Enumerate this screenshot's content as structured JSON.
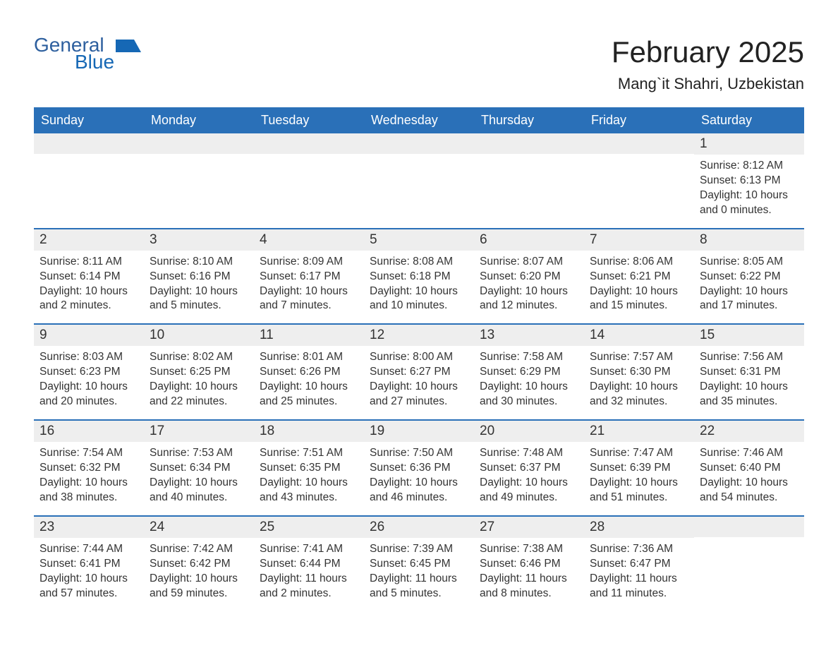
{
  "brand": {
    "line1": "General",
    "line2": "Blue",
    "color1": "#2d5f9e",
    "color2": "#1668b5"
  },
  "title": "February 2025",
  "location": "Mang`it Shahri, Uzbekistan",
  "colors": {
    "header_bg": "#2a70b8",
    "header_text": "#ffffff",
    "daynum_bg": "#eeeeee",
    "divider": "#2a70b8",
    "body_text": "#333333",
    "background": "#ffffff"
  },
  "typography": {
    "title_fontsize": 42,
    "location_fontsize": 22,
    "dow_fontsize": 18,
    "daynum_fontsize": 19,
    "body_fontsize": 15.5
  },
  "days_of_week": [
    "Sunday",
    "Monday",
    "Tuesday",
    "Wednesday",
    "Thursday",
    "Friday",
    "Saturday"
  ],
  "weeks": [
    [
      null,
      null,
      null,
      null,
      null,
      null,
      {
        "n": "1",
        "sunrise": "8:12 AM",
        "sunset": "6:13 PM",
        "daylight": "10 hours and 0 minutes."
      }
    ],
    [
      {
        "n": "2",
        "sunrise": "8:11 AM",
        "sunset": "6:14 PM",
        "daylight": "10 hours and 2 minutes."
      },
      {
        "n": "3",
        "sunrise": "8:10 AM",
        "sunset": "6:16 PM",
        "daylight": "10 hours and 5 minutes."
      },
      {
        "n": "4",
        "sunrise": "8:09 AM",
        "sunset": "6:17 PM",
        "daylight": "10 hours and 7 minutes."
      },
      {
        "n": "5",
        "sunrise": "8:08 AM",
        "sunset": "6:18 PM",
        "daylight": "10 hours and 10 minutes."
      },
      {
        "n": "6",
        "sunrise": "8:07 AM",
        "sunset": "6:20 PM",
        "daylight": "10 hours and 12 minutes."
      },
      {
        "n": "7",
        "sunrise": "8:06 AM",
        "sunset": "6:21 PM",
        "daylight": "10 hours and 15 minutes."
      },
      {
        "n": "8",
        "sunrise": "8:05 AM",
        "sunset": "6:22 PM",
        "daylight": "10 hours and 17 minutes."
      }
    ],
    [
      {
        "n": "9",
        "sunrise": "8:03 AM",
        "sunset": "6:23 PM",
        "daylight": "10 hours and 20 minutes."
      },
      {
        "n": "10",
        "sunrise": "8:02 AM",
        "sunset": "6:25 PM",
        "daylight": "10 hours and 22 minutes."
      },
      {
        "n": "11",
        "sunrise": "8:01 AM",
        "sunset": "6:26 PM",
        "daylight": "10 hours and 25 minutes."
      },
      {
        "n": "12",
        "sunrise": "8:00 AM",
        "sunset": "6:27 PM",
        "daylight": "10 hours and 27 minutes."
      },
      {
        "n": "13",
        "sunrise": "7:58 AM",
        "sunset": "6:29 PM",
        "daylight": "10 hours and 30 minutes."
      },
      {
        "n": "14",
        "sunrise": "7:57 AM",
        "sunset": "6:30 PM",
        "daylight": "10 hours and 32 minutes."
      },
      {
        "n": "15",
        "sunrise": "7:56 AM",
        "sunset": "6:31 PM",
        "daylight": "10 hours and 35 minutes."
      }
    ],
    [
      {
        "n": "16",
        "sunrise": "7:54 AM",
        "sunset": "6:32 PM",
        "daylight": "10 hours and 38 minutes."
      },
      {
        "n": "17",
        "sunrise": "7:53 AM",
        "sunset": "6:34 PM",
        "daylight": "10 hours and 40 minutes."
      },
      {
        "n": "18",
        "sunrise": "7:51 AM",
        "sunset": "6:35 PM",
        "daylight": "10 hours and 43 minutes."
      },
      {
        "n": "19",
        "sunrise": "7:50 AM",
        "sunset": "6:36 PM",
        "daylight": "10 hours and 46 minutes."
      },
      {
        "n": "20",
        "sunrise": "7:48 AM",
        "sunset": "6:37 PM",
        "daylight": "10 hours and 49 minutes."
      },
      {
        "n": "21",
        "sunrise": "7:47 AM",
        "sunset": "6:39 PM",
        "daylight": "10 hours and 51 minutes."
      },
      {
        "n": "22",
        "sunrise": "7:46 AM",
        "sunset": "6:40 PM",
        "daylight": "10 hours and 54 minutes."
      }
    ],
    [
      {
        "n": "23",
        "sunrise": "7:44 AM",
        "sunset": "6:41 PM",
        "daylight": "10 hours and 57 minutes."
      },
      {
        "n": "24",
        "sunrise": "7:42 AM",
        "sunset": "6:42 PM",
        "daylight": "10 hours and 59 minutes."
      },
      {
        "n": "25",
        "sunrise": "7:41 AM",
        "sunset": "6:44 PM",
        "daylight": "11 hours and 2 minutes."
      },
      {
        "n": "26",
        "sunrise": "7:39 AM",
        "sunset": "6:45 PM",
        "daylight": "11 hours and 5 minutes."
      },
      {
        "n": "27",
        "sunrise": "7:38 AM",
        "sunset": "6:46 PM",
        "daylight": "11 hours and 8 minutes."
      },
      {
        "n": "28",
        "sunrise": "7:36 AM",
        "sunset": "6:47 PM",
        "daylight": "11 hours and 11 minutes."
      },
      null
    ]
  ],
  "labels": {
    "sunrise": "Sunrise:",
    "sunset": "Sunset:",
    "daylight": "Daylight:"
  }
}
